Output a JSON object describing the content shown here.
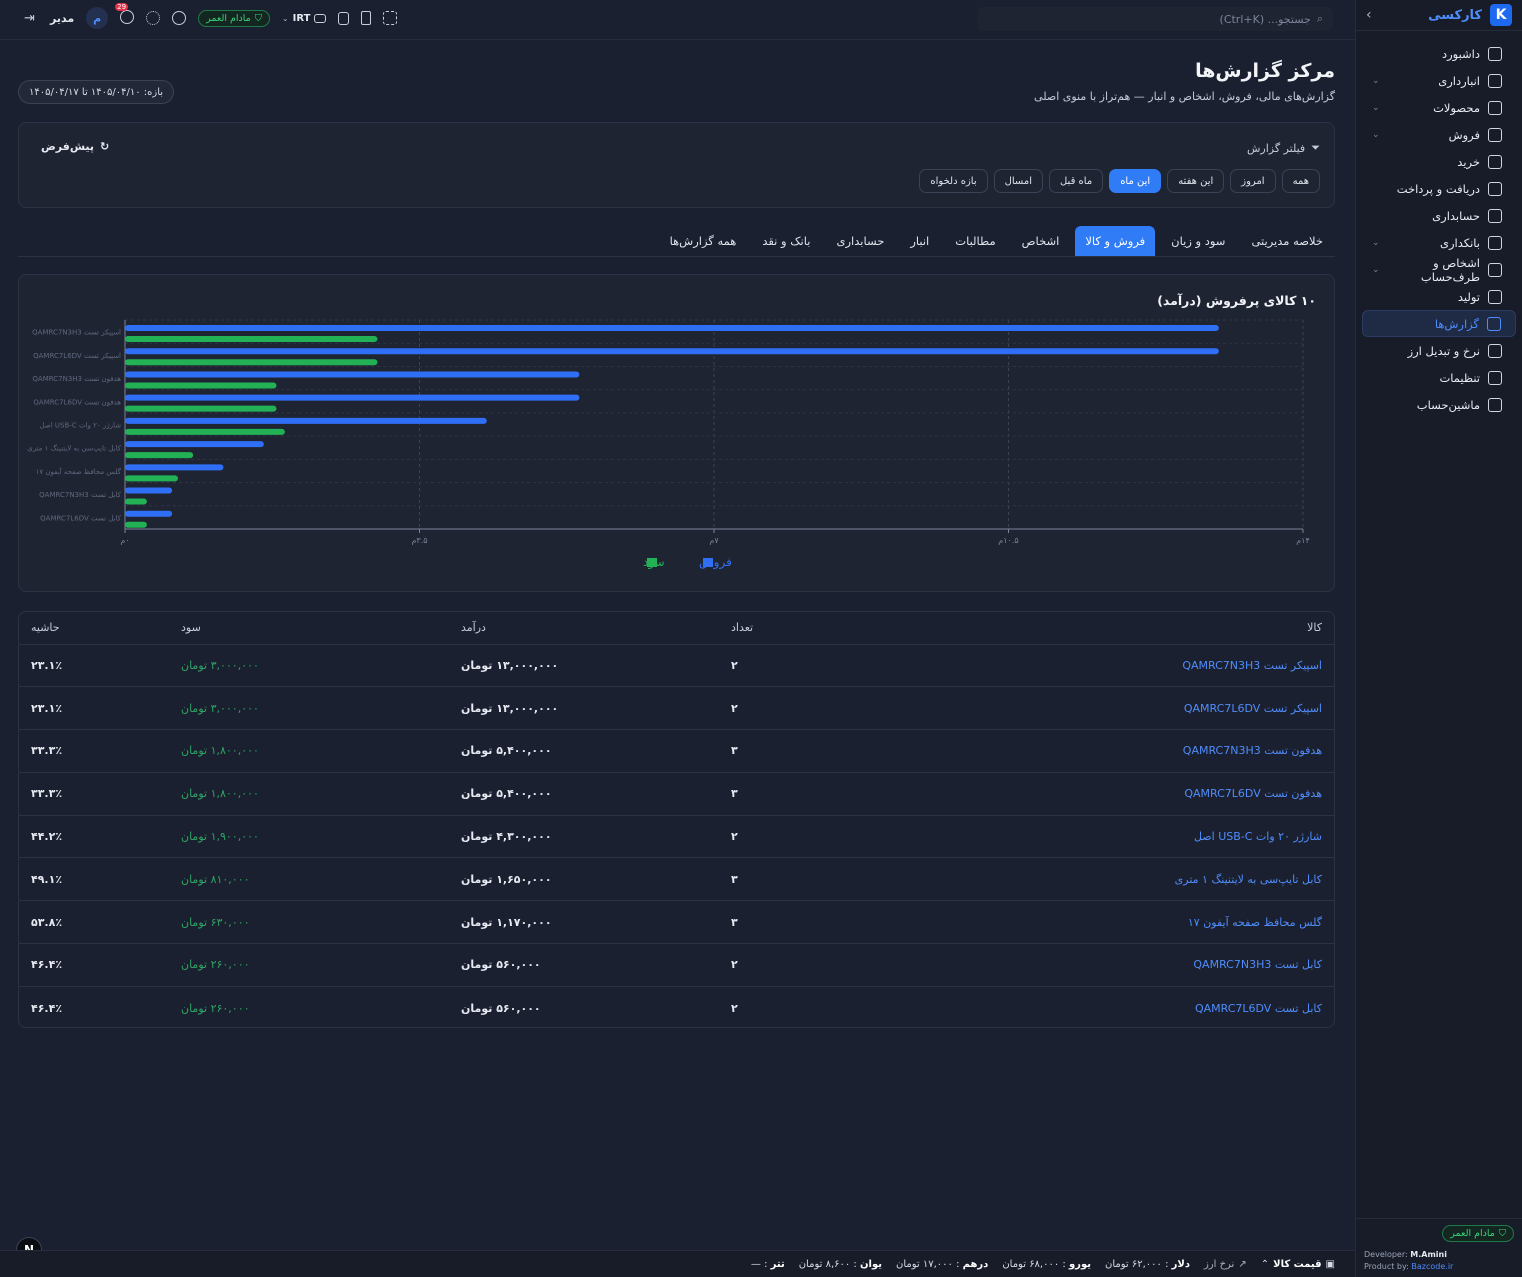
{
  "brand": {
    "name": "کارکسی",
    "logo_letter": "K"
  },
  "nav": [
    {
      "label": "داشبورد",
      "icon": "dashboard-icon",
      "chev": ""
    },
    {
      "label": "انبارداری",
      "icon": "warehouse-icon",
      "chev": "⌄"
    },
    {
      "label": "محصولات",
      "icon": "box-icon",
      "chev": "⌄"
    },
    {
      "label": "فروش",
      "icon": "cart-icon",
      "chev": "⌄"
    },
    {
      "label": "خرید",
      "icon": "receipt-icon",
      "chev": ""
    },
    {
      "label": "دریافت و پرداخت",
      "icon": "exchange-icon",
      "chev": ""
    },
    {
      "label": "حسابداری",
      "icon": "book-icon",
      "chev": ""
    },
    {
      "label": "بانکداری",
      "icon": "bank-icon",
      "chev": "⌄"
    },
    {
      "label": "اشخاص و طرف‌حساب",
      "icon": "users-icon",
      "chev": "⌄"
    },
    {
      "label": "تولید",
      "icon": "factory-icon",
      "chev": ""
    },
    {
      "label": "گزارش‌ها",
      "icon": "chart-icon",
      "chev": "",
      "active": true
    },
    {
      "label": "نرخ و تبدیل ارز",
      "icon": "trend-icon",
      "chev": ""
    },
    {
      "label": "تنظیمات",
      "icon": "gear-icon",
      "chev": ""
    },
    {
      "label": "ماشین‌حساب",
      "icon": "calculator-icon",
      "chev": ""
    }
  ],
  "sidebar_footer": {
    "badge": "مادام العمر",
    "dev_name": "M.Amini",
    "dev_label": "Developer:",
    "product_link": "Bazcode.ir",
    "product_label": "Product by:"
  },
  "topbar": {
    "search_placeholder": "جستجو... (Ctrl+K)",
    "currency": "IRT",
    "license_badge": "مادام العمر",
    "notif_count": "29",
    "user_initial": "م",
    "user_role": "مدیر"
  },
  "page": {
    "title": "مرکز گزارش‌ها",
    "subtitle": "گزارش‌های مالی، فروش، اشخاص و انبار — هم‌تراز با منوی اصلی",
    "range": "بازه: ۱۴۰۵/۰۴/۱۰ تا ۱۴۰۵/۰۴/۱۷"
  },
  "filter": {
    "title": "فیلتر گزارش",
    "reset": "پیش‌فرض",
    "chips": [
      "همه",
      "امروز",
      "این هفته",
      "این ماه",
      "ماه قبل",
      "امسال",
      "بازه دلخواه"
    ],
    "active_chip": 3
  },
  "tabs": {
    "items": [
      "خلاصه مدیریتی",
      "سود و زیان",
      "فروش و کالا",
      "اشخاص",
      "مطالبات",
      "انبار",
      "حسابداری",
      "بانک و نقد",
      "همه گزارش‌ها"
    ],
    "active": 2
  },
  "chart_data": {
    "type": "bar",
    "orientation": "horizontal",
    "title": "۱۰ کالای پرفروش (درآمد)",
    "categories": [
      "اسپیکر تست QAMRC7N3H3",
      "اسپیکر تست QAMRC7L6DV",
      "هدفون تست QAMRC7N3H3",
      "هدفون تست QAMRC7L6DV",
      "شارژر ۲۰ وات USB-C اصل",
      "کابل تایپ‌سی به لایتنینگ ۱ متری",
      "گلس محافظ صفحه آیفون ۱۷",
      "کابل تست QAMRC7N3H3",
      "کابل تست QAMRC7L6DV"
    ],
    "series": [
      {
        "name": "فروش",
        "color": "#2f6ff5",
        "values": [
          13000000,
          13000000,
          5400000,
          5400000,
          4300000,
          1650000,
          1170000,
          560000,
          560000
        ]
      },
      {
        "name": "سود",
        "color": "#22b154",
        "values": [
          3000000,
          3000000,
          1800000,
          1800000,
          1900000,
          810000,
          630000,
          260000,
          260000
        ]
      }
    ],
    "xlim": [
      0,
      14000000
    ],
    "xticks": [
      "۰م",
      "۳.۵م",
      "۷م",
      "۱۰.۵م",
      "۱۴م"
    ],
    "grid": true,
    "legend": "bottom-center"
  },
  "table": {
    "headers": {
      "name": "کالا",
      "qty": "تعداد",
      "revenue": "درآمد",
      "profit": "سود",
      "margin": "حاشیه"
    },
    "rows": [
      {
        "name": "اسپیکر تست QAMRC7N3H3",
        "qty": "۲",
        "revenue": "۱۳,۰۰۰,۰۰۰ تومان",
        "profit": "۳,۰۰۰,۰۰۰ تومان",
        "margin": "۲۳.۱٪"
      },
      {
        "name": "اسپیکر تست QAMRC7L6DV",
        "qty": "۲",
        "revenue": "۱۳,۰۰۰,۰۰۰ تومان",
        "profit": "۳,۰۰۰,۰۰۰ تومان",
        "margin": "۲۳.۱٪"
      },
      {
        "name": "هدفون تست QAMRC7N3H3",
        "qty": "۳",
        "revenue": "۵,۴۰۰,۰۰۰ تومان",
        "profit": "۱,۸۰۰,۰۰۰ تومان",
        "margin": "۳۳.۳٪"
      },
      {
        "name": "هدفون تست QAMRC7L6DV",
        "qty": "۳",
        "revenue": "۵,۴۰۰,۰۰۰ تومان",
        "profit": "۱,۸۰۰,۰۰۰ تومان",
        "margin": "۳۳.۳٪"
      },
      {
        "name": "شارژر ۲۰ وات USB-C اصل",
        "qty": "۲",
        "revenue": "۴,۳۰۰,۰۰۰ تومان",
        "profit": "۱,۹۰۰,۰۰۰ تومان",
        "margin": "۴۴.۲٪"
      },
      {
        "name": "کابل تایپ‌سی به لایتنینگ ۱ متری",
        "qty": "۳",
        "revenue": "۱,۶۵۰,۰۰۰ تومان",
        "profit": "۸۱۰,۰۰۰ تومان",
        "margin": "۴۹.۱٪"
      },
      {
        "name": "گلس محافظ صفحه آیفون ۱۷",
        "qty": "۳",
        "revenue": "۱,۱۷۰,۰۰۰ تومان",
        "profit": "۶۳۰,۰۰۰ تومان",
        "margin": "۵۳.۸٪"
      },
      {
        "name": "کابل تست QAMRC7N3H3",
        "qty": "۲",
        "revenue": "۵۶۰,۰۰۰ تومان",
        "profit": "۲۶۰,۰۰۰ تومان",
        "margin": "۴۶.۴٪"
      },
      {
        "name": "کابل تست QAMRC7L6DV",
        "qty": "۲",
        "revenue": "۵۶۰,۰۰۰ تومان",
        "profit": "۲۶۰,۰۰۰ تومان",
        "margin": "۴۶.۴٪"
      }
    ]
  },
  "ticker": {
    "title": "قیمت کالا",
    "rate_label": "نرخ ارز",
    "items": [
      {
        "label": "دلار",
        "value": "۶۲,۰۰۰ تومان"
      },
      {
        "label": "یورو",
        "value": "۶۸,۰۰۰ تومان"
      },
      {
        "label": "درهم",
        "value": "۱۷,۰۰۰ تومان"
      },
      {
        "label": "یوان",
        "value": "۸,۶۰۰ تومان"
      },
      {
        "label": "تتر",
        "value": "—"
      }
    ]
  }
}
